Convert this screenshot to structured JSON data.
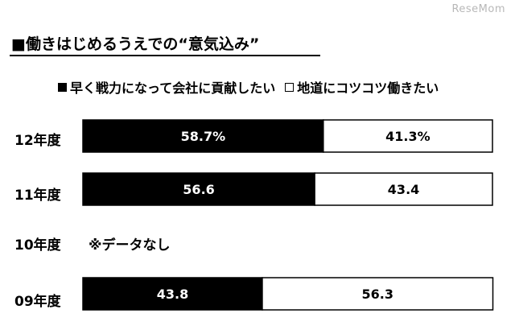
{
  "watermark": "ReseMom",
  "title": "■働きはじめるうえでの“意気込み”",
  "legend": [
    {
      "label": "早く戦力になって会社に貢献したい",
      "color": "#000000"
    },
    {
      "label": "地道にコツコツ働きたい",
      "color": "#ffffff"
    }
  ],
  "chart_data": {
    "type": "bar",
    "orientation": "horizontal",
    "stacked": true,
    "categories": [
      "12年度",
      "11年度",
      "10年度",
      "09年度"
    ],
    "series": [
      {
        "name": "早く戦力になって会社に貢献したい",
        "values": [
          58.7,
          56.6,
          null,
          43.8
        ],
        "labels": [
          "58.7%",
          "56.6",
          "",
          "43.8"
        ],
        "color": "#000000"
      },
      {
        "name": "地道にコツコツ働きたい",
        "values": [
          41.3,
          43.4,
          null,
          56.3
        ],
        "labels": [
          "41.3%",
          "43.4",
          "",
          "56.3"
        ],
        "color": "#ffffff"
      }
    ],
    "xlim": [
      0,
      100
    ],
    "no_data_category": "10年度",
    "no_data_note": "※データなし"
  }
}
